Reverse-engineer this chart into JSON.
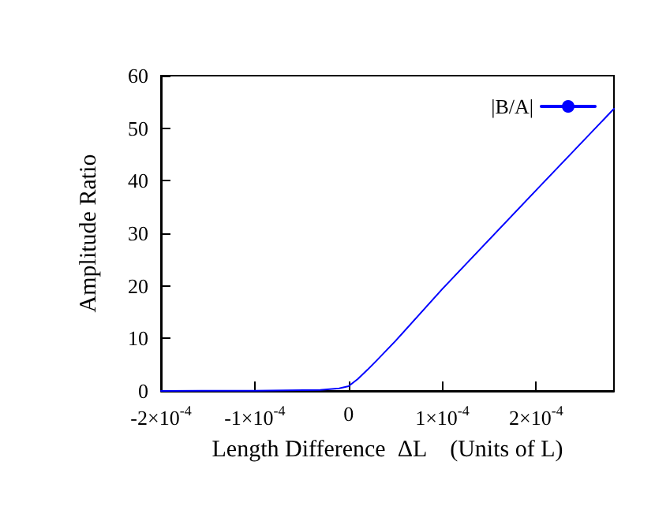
{
  "chart_data": {
    "type": "line",
    "xlabel": "Length Difference  ΔL    (Units of L)",
    "ylabel": "Amplitude Ratio",
    "x": [
      -0.0002,
      -0.0001,
      -3e-05,
      -1e-05,
      0,
      1e-05,
      2e-05,
      3e-05,
      5e-05,
      0.0001,
      0.0002,
      0.000283
    ],
    "series": [
      {
        "name": "|B/A|",
        "color": "#0000ff",
        "values": [
          0,
          0.05,
          0.2,
          0.5,
          0.9,
          2.3,
          4.0,
          5.8,
          9.5,
          19.4,
          38.2,
          53.7
        ]
      }
    ],
    "xlim": [
      -0.0002,
      0.000283
    ],
    "xticks": [
      {
        "value": -0.0002,
        "label": "-2×10$^{-4}$"
      },
      {
        "value": -0.0001,
        "label": "-1×10$^{-4}$"
      },
      0,
      {
        "value": 0.0001,
        "label": "1×10$^{-4}$"
      },
      {
        "value": 0.0002,
        "label": "2×10$^{-4}$"
      }
    ],
    "ylim": [
      0,
      60
    ],
    "yticks": [
      0,
      10,
      20,
      30,
      40,
      50,
      60
    ],
    "grid": false,
    "legend": "top right",
    "marker": "none",
    "line_style": "solid"
  }
}
